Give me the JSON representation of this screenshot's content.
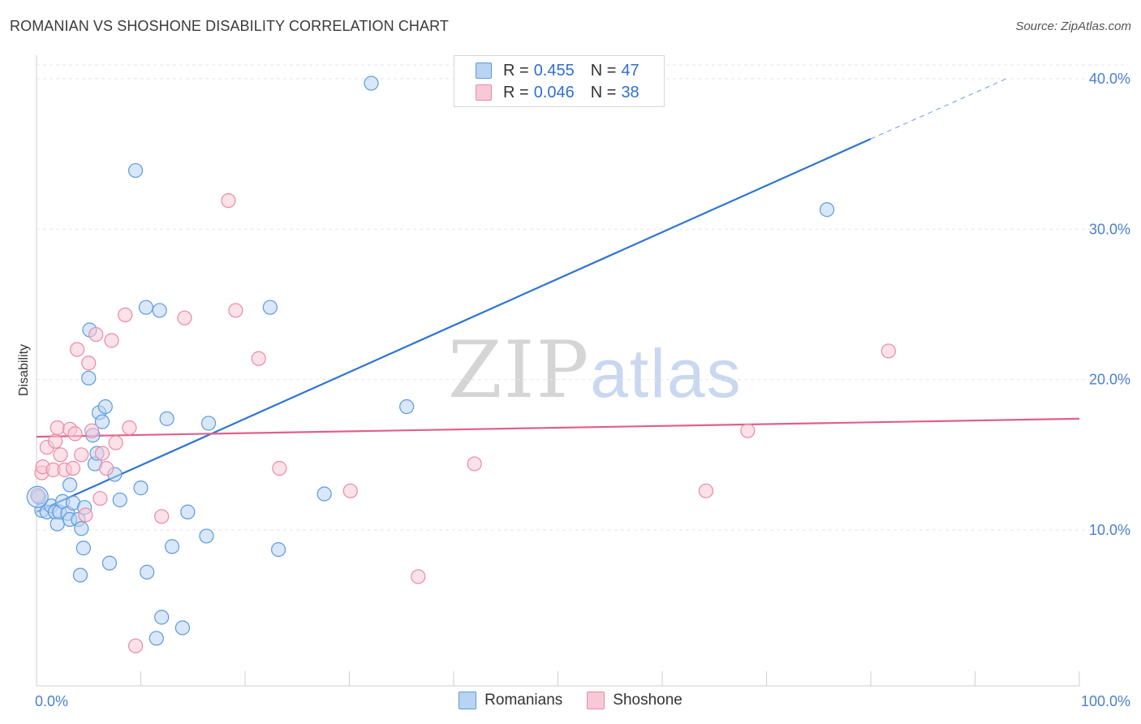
{
  "chart_data": {
    "type": "scatter",
    "title": "ROMANIAN VS SHOSHONE DISABILITY CORRELATION CHART",
    "source": "Source: ZipAtlas.com",
    "xlabel": "",
    "ylabel": "Disability",
    "xlim": [
      0,
      100
    ],
    "ylim": [
      0,
      40
    ],
    "x_ticks": [
      "0.0%",
      "100.0%"
    ],
    "y_ticks": [
      {
        "value": 10,
        "label": "10.0%"
      },
      {
        "value": 20,
        "label": "20.0%"
      },
      {
        "value": 30,
        "label": "30.0%"
      },
      {
        "value": 40,
        "label": "40.0%"
      }
    ],
    "legend": {
      "placement": "top-center",
      "rows": [
        {
          "r_label": "R =",
          "r_value": "0.455",
          "n_label": "N =",
          "n_value": "47"
        },
        {
          "r_label": "R =",
          "r_value": "0.046",
          "n_label": "N =",
          "n_value": "38"
        }
      ]
    },
    "series": [
      {
        "name": "Romanians",
        "color": "#5b9bdf",
        "fill": "#b9d3f3",
        "trend": {
          "x0": 0,
          "y0": 11.2,
          "x1": 80,
          "y1": 36.0,
          "dashed_to_x": 93,
          "dashed_to_y": 40.0,
          "color": "#2f74d0"
        },
        "points": [
          [
            0.2,
            12.2
          ],
          [
            0.5,
            11.3
          ],
          [
            1,
            11.2
          ],
          [
            1.4,
            11.6
          ],
          [
            1.8,
            11.2
          ],
          [
            2,
            10.4
          ],
          [
            2.2,
            11.2
          ],
          [
            2.5,
            11.9
          ],
          [
            3,
            11.1
          ],
          [
            3.2,
            10.7
          ],
          [
            3.5,
            11.8
          ],
          [
            3.2,
            13.0
          ],
          [
            4,
            10.7
          ],
          [
            4.3,
            10.1
          ],
          [
            4.5,
            8.8
          ],
          [
            4.2,
            7.0
          ],
          [
            4.6,
            11.5
          ],
          [
            5,
            20.1
          ],
          [
            5.1,
            23.3
          ],
          [
            5.4,
            16.3
          ],
          [
            5.6,
            14.4
          ],
          [
            5.8,
            15.1
          ],
          [
            6,
            17.8
          ],
          [
            6.3,
            17.2
          ],
          [
            6.6,
            18.2
          ],
          [
            7,
            7.8
          ],
          [
            7.5,
            13.7
          ],
          [
            8,
            12.0
          ],
          [
            9.5,
            33.9
          ],
          [
            10,
            12.8
          ],
          [
            10.5,
            24.8
          ],
          [
            10.6,
            7.2
          ],
          [
            11.5,
            2.8
          ],
          [
            11.8,
            24.6
          ],
          [
            12,
            4.2
          ],
          [
            12.5,
            17.4
          ],
          [
            13,
            8.9
          ],
          [
            14,
            3.5
          ],
          [
            14.5,
            11.2
          ],
          [
            16.3,
            9.6
          ],
          [
            16.5,
            17.1
          ],
          [
            22.4,
            24.8
          ],
          [
            23.2,
            8.7
          ],
          [
            27.6,
            12.4
          ],
          [
            32.1,
            39.7
          ],
          [
            35.5,
            18.2
          ],
          [
            75.8,
            31.3
          ]
        ]
      },
      {
        "name": "Shoshone",
        "color": "#ea8aa8",
        "fill": "#f8c8d6",
        "trend": {
          "x0": 0,
          "y0": 16.2,
          "x1": 100,
          "y1": 17.4,
          "color": "#e0608a"
        },
        "points": [
          [
            0.5,
            13.8
          ],
          [
            0.6,
            14.2
          ],
          [
            1,
            15.5
          ],
          [
            1.6,
            14.0
          ],
          [
            1.8,
            15.9
          ],
          [
            2,
            16.8
          ],
          [
            2.3,
            15.0
          ],
          [
            2.7,
            14.0
          ],
          [
            3.2,
            16.7
          ],
          [
            3.5,
            14.1
          ],
          [
            3.7,
            16.4
          ],
          [
            3.9,
            22.0
          ],
          [
            4.3,
            15.0
          ],
          [
            4.7,
            11.0
          ],
          [
            5,
            21.1
          ],
          [
            5.3,
            16.6
          ],
          [
            5.7,
            23.0
          ],
          [
            6.1,
            12.1
          ],
          [
            6.3,
            15.1
          ],
          [
            6.7,
            14.1
          ],
          [
            7.2,
            22.6
          ],
          [
            7.6,
            15.8
          ],
          [
            8.5,
            24.3
          ],
          [
            8.9,
            16.8
          ],
          [
            9.5,
            2.3
          ],
          [
            12,
            10.9
          ],
          [
            14.2,
            24.1
          ],
          [
            18.4,
            31.9
          ],
          [
            19.1,
            24.6
          ],
          [
            21.3,
            21.4
          ],
          [
            23.3,
            14.1
          ],
          [
            30.1,
            12.6
          ],
          [
            42,
            14.4
          ],
          [
            36.6,
            6.9
          ],
          [
            64.2,
            12.6
          ],
          [
            68.2,
            16.6
          ],
          [
            81.7,
            21.9
          ],
          [
            0.1,
            12.3
          ]
        ]
      }
    ]
  },
  "bottom_legend": [
    {
      "label": "Romanians",
      "color": "#5b9bdf",
      "fill": "#b9d3f3"
    },
    {
      "label": "Shoshone",
      "color": "#ea8aa8",
      "fill": "#f8c8d6"
    }
  ],
  "watermark": {
    "part1": "ZIP",
    "part2": "atlas"
  }
}
